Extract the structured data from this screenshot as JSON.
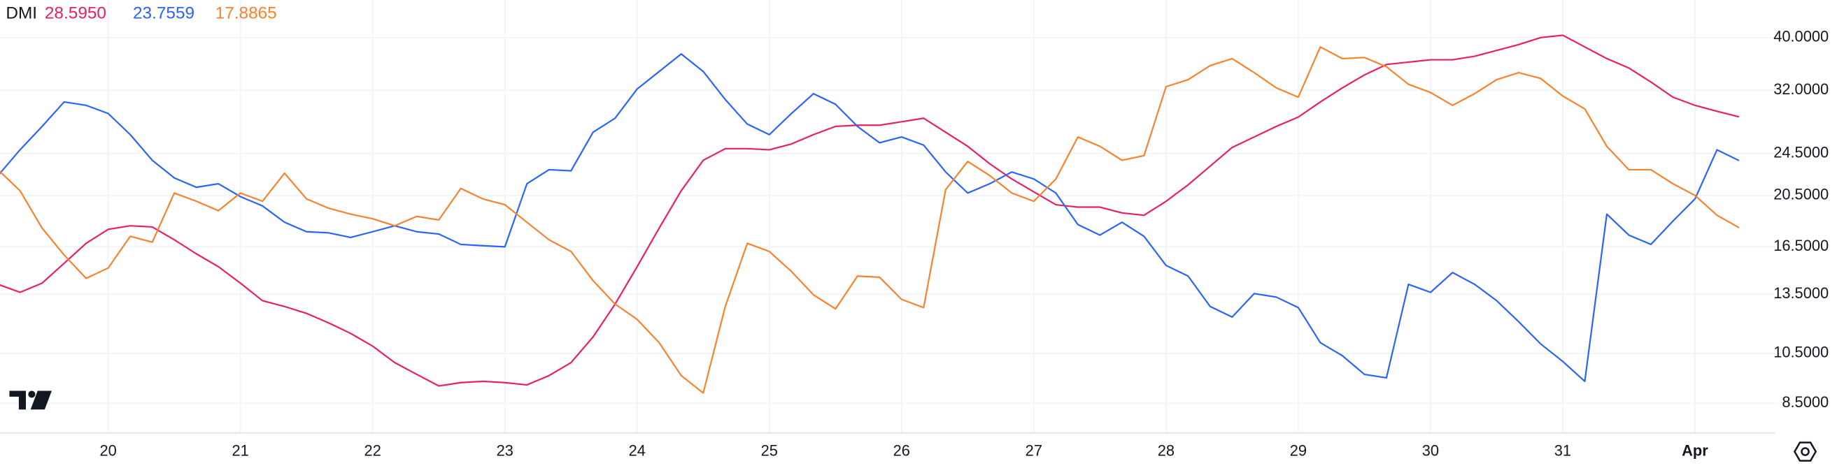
{
  "chart_data": {
    "type": "line",
    "title": "DMI",
    "log_scale": true,
    "grid": true,
    "categories": [
      null,
      null,
      null,
      null,
      null,
      "20",
      null,
      null,
      null,
      null,
      null,
      "21",
      null,
      null,
      null,
      null,
      null,
      "22",
      null,
      null,
      null,
      null,
      null,
      "23",
      null,
      null,
      null,
      null,
      null,
      "24",
      null,
      null,
      null,
      null,
      null,
      "25",
      null,
      null,
      null,
      null,
      null,
      "26",
      null,
      null,
      null,
      null,
      null,
      "27",
      null,
      null,
      null,
      null,
      null,
      "28",
      null,
      null,
      null,
      null,
      null,
      "29",
      null,
      null,
      null,
      null,
      null,
      "30",
      null,
      null,
      null,
      null,
      null,
      "31",
      null,
      null,
      null,
      null,
      null,
      "Apr",
      null,
      null
    ],
    "ylim": [
      7.5,
      46.9
    ],
    "yticks": [
      {
        "value": 8.5,
        "label": "8.5000"
      },
      {
        "value": 10.5,
        "label": "10.5000"
      },
      {
        "value": 13.5,
        "label": "13.5000"
      },
      {
        "value": 16.5,
        "label": "16.5000"
      },
      {
        "value": 20.5,
        "label": "20.5000"
      },
      {
        "value": 24.5,
        "label": "24.5000"
      },
      {
        "value": 32,
        "label": "32.0000"
      },
      {
        "value": 40,
        "label": "40.0000"
      }
    ],
    "series": [
      {
        "color": "#e91e63",
        "last_label": "28.5950",
        "values": [
          14.07,
          13.6,
          14.14,
          15.38,
          16.74,
          17.76,
          18.03,
          17.94,
          16.99,
          16.01,
          15.16,
          14.14,
          13.13,
          12.81,
          12.44,
          11.95,
          11.43,
          10.83,
          10.1,
          9.61,
          9.15,
          9.28,
          9.33,
          9.28,
          9.19,
          9.56,
          10.1,
          11.26,
          12.94,
          15.16,
          17.85,
          20.91,
          23.79,
          24.99,
          24.99,
          24.87,
          25.49,
          26.52,
          27.46,
          27.6,
          27.6,
          28.01,
          28.43,
          26.79,
          25.24,
          23.44,
          21.98,
          20.81,
          19.71,
          19.51,
          19.51,
          19.04,
          18.85,
          20.0,
          21.44,
          23.2,
          25.12,
          26.26,
          27.46,
          28.57,
          30.46,
          32.33,
          34.14,
          35.69,
          36.05,
          36.41,
          36.41,
          36.96,
          37.88,
          38.83,
          40.0,
          40.4,
          38.45,
          36.59,
          35.17,
          33.14,
          31.08,
          30.02,
          29.28,
          28.595
        ]
      },
      {
        "color": "#2962ff",
        "last_label": "23.7559",
        "values": [
          22.3,
          24.87,
          27.46,
          30.46,
          30.02,
          29.0,
          26.52,
          23.79,
          22.08,
          21.22,
          21.54,
          20.4,
          19.61,
          18.3,
          17.58,
          17.5,
          17.16,
          17.58,
          18.03,
          17.58,
          17.41,
          16.66,
          16.57,
          16.49,
          21.54,
          22.86,
          22.75,
          26.79,
          28.43,
          32.17,
          34.65,
          37.32,
          34.65,
          30.77,
          27.73,
          26.52,
          29.0,
          31.54,
          30.16,
          27.46,
          25.62,
          26.26,
          25.37,
          22.64,
          20.71,
          21.54,
          22.64,
          21.98,
          20.71,
          18.12,
          17.33,
          18.3,
          17.24,
          15.24,
          14.57,
          12.81,
          12.25,
          13.53,
          13.33,
          12.75,
          10.99,
          10.4,
          9.61,
          9.47,
          14.07,
          13.6,
          14.79,
          14.07,
          13.13,
          12.01,
          10.93,
          10.15,
          9.33,
          18.94,
          17.33,
          16.66,
          18.39,
          20.2,
          24.87,
          23.7559
        ]
      },
      {
        "color": "#f7822e",
        "last_label": "17.8865",
        "values": [
          22.86,
          20.91,
          17.85,
          15.93,
          14.43,
          15.08,
          17.24,
          16.82,
          20.71,
          20.0,
          19.22,
          20.71,
          20.0,
          22.52,
          20.2,
          19.42,
          18.94,
          18.57,
          18.03,
          18.76,
          18.48,
          21.12,
          20.2,
          19.71,
          18.3,
          16.99,
          16.17,
          14.29,
          12.94,
          12.13,
          10.99,
          9.56,
          8.88,
          12.81,
          16.74,
          16.17,
          14.86,
          13.46,
          12.68,
          14.57,
          14.5,
          13.2,
          12.75,
          21.01,
          23.67,
          22.3,
          20.71,
          20.0,
          21.98,
          26.26,
          25.24,
          23.79,
          24.26,
          32.49,
          33.47,
          35.52,
          36.59,
          34.48,
          32.33,
          31.08,
          38.45,
          36.59,
          36.77,
          35.35,
          32.82,
          31.7,
          30.02,
          31.54,
          33.47,
          34.48,
          33.64,
          31.23,
          29.57,
          25.24,
          22.86,
          22.86,
          21.54,
          20.5,
          18.85,
          17.8865
        ]
      }
    ]
  }
}
